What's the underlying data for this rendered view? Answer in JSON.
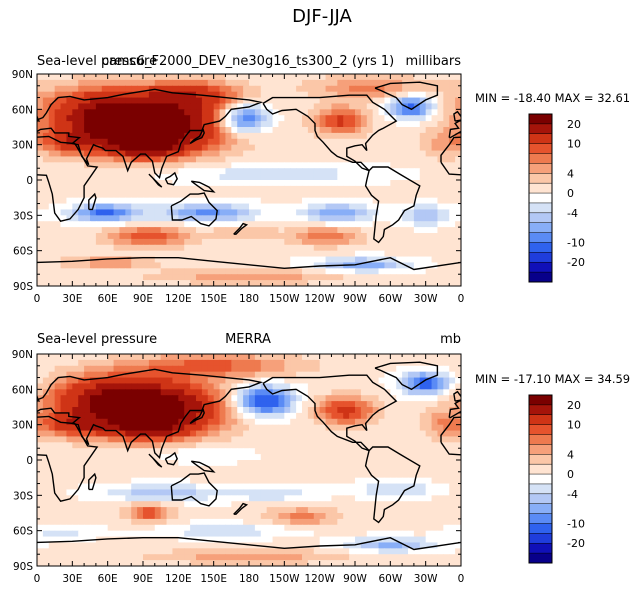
{
  "figure": {
    "title": "DJF-JJA"
  },
  "chart_data": [
    {
      "type": "heatmap",
      "panel": "top",
      "left_title": "Sea-level pressure",
      "center_title": "camc6_F2000_DEV_ne30g16_ts300_2 (yrs 1)",
      "units": "millibars",
      "min_max_text": "MIN = -18.40 MAX =  32.61",
      "min": -18.4,
      "max": 32.61,
      "x_ticks": [
        "0",
        "30E",
        "60E",
        "90E",
        "120E",
        "150E",
        "180",
        "150W",
        "120W",
        "90W",
        "60W",
        "30W",
        "0"
      ],
      "y_ticks": [
        "90N",
        "60N",
        "30N",
        "0",
        "30S",
        "60S",
        "90S"
      ],
      "xlim": [
        0,
        360
      ],
      "ylim": [
        -90,
        90
      ],
      "field": {
        "background": 0.5,
        "blobs": [
          {
            "lon": 95,
            "lat": 45,
            "rlon": 62,
            "rlat": 22,
            "v": 26
          },
          {
            "lon": 60,
            "lat": 60,
            "rlon": 55,
            "rlat": 20,
            "v": 12
          },
          {
            "lon": 135,
            "lat": 72,
            "rlon": 40,
            "rlat": 12,
            "v": 10
          },
          {
            "lon": 92,
            "lat": 28,
            "rlon": 28,
            "rlat": 9,
            "v": 12
          },
          {
            "lon": 30,
            "lat": 32,
            "rlon": 25,
            "rlat": 10,
            "v": 8
          },
          {
            "lon": 258,
            "lat": 50,
            "rlon": 22,
            "rlat": 12,
            "v": 10
          },
          {
            "lon": 282,
            "lat": 78,
            "rlon": 50,
            "rlat": 10,
            "v": 6
          },
          {
            "lon": 345,
            "lat": 30,
            "rlon": 18,
            "rlat": 12,
            "v": 4
          },
          {
            "lon": 175,
            "lat": 52,
            "rlon": 22,
            "rlat": 13,
            "v": -14
          },
          {
            "lon": 318,
            "lat": 62,
            "rlon": 20,
            "rlat": 10,
            "v": -12
          },
          {
            "lon": 58,
            "lat": -28,
            "rlon": 30,
            "rlat": 8,
            "v": -11
          },
          {
            "lon": 145,
            "lat": -28,
            "rlon": 40,
            "rlat": 8,
            "v": -9
          },
          {
            "lon": 255,
            "lat": -28,
            "rlon": 30,
            "rlat": 8,
            "v": -8
          },
          {
            "lon": 330,
            "lat": -30,
            "rlon": 20,
            "rlat": 8,
            "v": -7
          },
          {
            "lon": 200,
            "lat": 5,
            "rlon": 90,
            "rlat": 8,
            "v": -4
          },
          {
            "lon": 95,
            "lat": -48,
            "rlon": 35,
            "rlat": 9,
            "v": 9
          },
          {
            "lon": 245,
            "lat": -48,
            "rlon": 30,
            "rlat": 8,
            "v": 7
          },
          {
            "lon": 175,
            "lat": -45,
            "rlon": 25,
            "rlat": 6,
            "v": 4
          },
          {
            "lon": 60,
            "lat": -70,
            "rlon": 40,
            "rlat": 6,
            "v": 5
          },
          {
            "lon": 275,
            "lat": -72,
            "rlon": 40,
            "rlat": 6,
            "v": -8
          },
          {
            "lon": 180,
            "lat": -82,
            "rlon": 80,
            "rlat": 6,
            "v": 5
          }
        ]
      }
    },
    {
      "type": "heatmap",
      "panel": "bottom",
      "left_title": "Sea-level pressure",
      "center_title": "MERRA",
      "units": "mb",
      "min_max_text": "MIN = -17.10 MAX =  34.59",
      "min": -17.1,
      "max": 34.59,
      "x_ticks": [
        "0",
        "30E",
        "60E",
        "90E",
        "120E",
        "150E",
        "180",
        "150W",
        "120W",
        "90W",
        "60W",
        "30W",
        "0"
      ],
      "y_ticks": [
        "90N",
        "60N",
        "30N",
        "0",
        "30S",
        "60S",
        "90S"
      ],
      "xlim": [
        0,
        360
      ],
      "ylim": [
        -90,
        90
      ],
      "field": {
        "background": 0.5,
        "blobs": [
          {
            "lon": 95,
            "lat": 43,
            "rlon": 60,
            "rlat": 22,
            "v": 24
          },
          {
            "lon": 60,
            "lat": 55,
            "rlon": 50,
            "rlat": 18,
            "v": 10
          },
          {
            "lon": 150,
            "lat": 80,
            "rlon": 70,
            "rlat": 10,
            "v": 8
          },
          {
            "lon": 95,
            "lat": 28,
            "rlon": 28,
            "rlat": 9,
            "v": 12
          },
          {
            "lon": 30,
            "lat": 30,
            "rlon": 25,
            "rlat": 10,
            "v": 9
          },
          {
            "lon": 262,
            "lat": 42,
            "rlon": 25,
            "rlat": 12,
            "v": 11
          },
          {
            "lon": 345,
            "lat": 30,
            "rlon": 18,
            "rlat": 12,
            "v": 5
          },
          {
            "lon": 192,
            "lat": 50,
            "rlon": 25,
            "rlat": 13,
            "v": -15
          },
          {
            "lon": 330,
            "lat": 65,
            "rlon": 22,
            "rlat": 10,
            "v": -12
          },
          {
            "lon": 105,
            "lat": -28,
            "rlon": 50,
            "rlat": 7,
            "v": -6
          },
          {
            "lon": 200,
            "lat": -28,
            "rlon": 40,
            "rlat": 7,
            "v": -4
          },
          {
            "lon": 305,
            "lat": -25,
            "rlon": 30,
            "rlat": 7,
            "v": -5
          },
          {
            "lon": 140,
            "lat": 5,
            "rlon": 40,
            "rlat": 7,
            "v": -3
          },
          {
            "lon": 95,
            "lat": -45,
            "rlon": 18,
            "rlat": 8,
            "v": 9
          },
          {
            "lon": 225,
            "lat": -48,
            "rlon": 30,
            "rlat": 8,
            "v": 6
          },
          {
            "lon": 160,
            "lat": -60,
            "rlon": 60,
            "rlat": 6,
            "v": -4
          },
          {
            "lon": 20,
            "lat": -62,
            "rlon": 30,
            "rlat": 6,
            "v": -3
          },
          {
            "lon": 300,
            "lat": -72,
            "rlon": 40,
            "rlat": 6,
            "v": -7
          },
          {
            "lon": 180,
            "lat": -82,
            "rlon": 80,
            "rlat": 6,
            "v": 5
          }
        ]
      }
    }
  ],
  "colorbar": {
    "levels": [
      -25,
      -20,
      -15,
      -10,
      -8,
      -6,
      -4,
      -2,
      0,
      2,
      4,
      6,
      8,
      10,
      15,
      20,
      25
    ],
    "tick_labels": [
      "20",
      "10",
      "4",
      "0",
      "-4",
      "-10",
      "-20"
    ],
    "tick_values": [
      20,
      10,
      4,
      0,
      -4,
      -10,
      -20
    ],
    "colors": [
      "#08008a",
      "#1010b8",
      "#1f3ddc",
      "#2f62ee",
      "#5a8bf5",
      "#88aef7",
      "#b3c8f5",
      "#d5e2f6",
      "#ffffff",
      "#ffe4d2",
      "#fbc7a8",
      "#f6a07a",
      "#ee7a4f",
      "#e6532d",
      "#cf3416",
      "#a5140a",
      "#7a0000"
    ]
  },
  "colors": {
    "continent_outline": "#000000",
    "frame": "#000000"
  }
}
